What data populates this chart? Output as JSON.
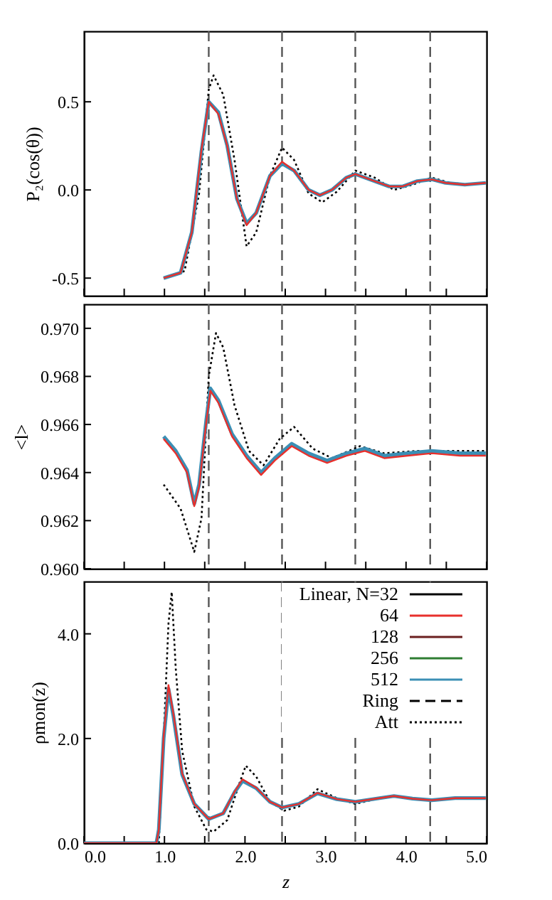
{
  "chart_data": [
    {
      "type": "line",
      "ylabel": "P₂(cos(θ))",
      "xlim": [
        0,
        5
      ],
      "ylim": [
        -0.6,
        0.9
      ],
      "xticks": [
        {
          "value": 0,
          "label": null
        },
        {
          "value": 0.5,
          "label": null
        },
        {
          "value": 1,
          "label": null
        },
        {
          "value": 1.5,
          "label": null
        },
        {
          "value": 2,
          "label": null
        },
        {
          "value": 2.5,
          "label": null
        },
        {
          "value": 3,
          "label": null
        },
        {
          "value": 3.5,
          "label": null
        },
        {
          "value": 4,
          "label": null
        },
        {
          "value": 4.5,
          "label": null
        },
        {
          "value": 5,
          "label": null
        }
      ],
      "yticks": [
        {
          "value": -0.5,
          "label": "-0.5"
        },
        {
          "value": 0,
          "label": "0.0"
        },
        {
          "value": 0.5,
          "label": "0.5"
        }
      ],
      "tick_labels": "y",
      "x": [
        0.99,
        1.2,
        1.34,
        1.46,
        1.55,
        1.67,
        1.78,
        1.9,
        2.02,
        2.14,
        2.31,
        2.46,
        2.61,
        2.79,
        2.93,
        3.08,
        3.26,
        3.37,
        3.55,
        3.79,
        3.96,
        4.14,
        4.32,
        4.49,
        4.73,
        4.99
      ],
      "ref_lines": [
        {
          "axis": "x",
          "value": 1.55,
          "color": "#555555",
          "line_style": "dashed"
        },
        {
          "axis": "x",
          "value": 2.46,
          "color": "#555555",
          "line_style": "dashed"
        },
        {
          "axis": "x",
          "value": 3.37,
          "color": "#555555",
          "line_style": "dashed"
        },
        {
          "axis": "x",
          "value": 4.3,
          "color": "#555555",
          "line_style": "dashed"
        }
      ],
      "series": [
        {
          "color": "#e8302c",
          "values": [
            -0.5,
            -0.47,
            -0.24,
            0.23,
            0.5,
            0.43,
            0.25,
            -0.05,
            -0.2,
            -0.13,
            0.08,
            0.16,
            0.11,
            0.0,
            -0.03,
            0.0,
            0.07,
            0.09,
            0.06,
            0.02,
            0.02,
            0.05,
            0.06,
            0.04,
            0.03,
            0.04
          ]
        },
        {
          "color": "#3b8fb5",
          "values": [
            -0.5,
            -0.47,
            -0.24,
            0.22,
            0.5,
            0.44,
            0.25,
            -0.05,
            -0.19,
            -0.13,
            0.08,
            0.15,
            0.11,
            0.0,
            -0.03,
            0.0,
            0.07,
            0.09,
            0.06,
            0.02,
            0.02,
            0.05,
            0.06,
            0.04,
            0.03,
            0.04
          ]
        },
        {
          "color": "#000000",
          "line_style": "dotted",
          "x": [
            0.99,
            1.25,
            1.43,
            1.55,
            1.61,
            1.73,
            1.87,
            2.02,
            2.14,
            2.31,
            2.46,
            2.61,
            2.79,
            2.96,
            3.14,
            3.37,
            3.61,
            3.85,
            4.08,
            4.32,
            4.55,
            4.79,
            4.99
          ],
          "values": [
            -0.5,
            -0.46,
            -0.02,
            0.57,
            0.65,
            0.54,
            0.17,
            -0.32,
            -0.24,
            0.08,
            0.24,
            0.17,
            -0.02,
            -0.07,
            -0.01,
            0.11,
            0.07,
            0.0,
            0.03,
            0.07,
            0.04,
            0.03,
            0.04
          ]
        }
      ]
    },
    {
      "type": "line",
      "ylabel": "<l>",
      "xlim": [
        0,
        5
      ],
      "ylim": [
        0.96,
        0.971
      ],
      "xticks": [
        {
          "value": 0,
          "label": null
        },
        {
          "value": 0.5,
          "label": null
        },
        {
          "value": 1,
          "label": null
        },
        {
          "value": 1.5,
          "label": null
        },
        {
          "value": 2,
          "label": null
        },
        {
          "value": 2.5,
          "label": null
        },
        {
          "value": 3,
          "label": null
        },
        {
          "value": 3.5,
          "label": null
        },
        {
          "value": 4,
          "label": null
        },
        {
          "value": 4.5,
          "label": null
        },
        {
          "value": 5,
          "label": null
        }
      ],
      "yticks": [
        {
          "value": 0.96,
          "label": "0.960"
        },
        {
          "value": 0.962,
          "label": "0.962"
        },
        {
          "value": 0.964,
          "label": "0.964"
        },
        {
          "value": 0.966,
          "label": "0.966"
        },
        {
          "value": 0.968,
          "label": "0.968"
        },
        {
          "value": 0.97,
          "label": "0.970"
        }
      ],
      "tick_labels": "y",
      "x": [
        0.99,
        1.14,
        1.28,
        1.37,
        1.43,
        1.52,
        1.57,
        1.67,
        1.84,
        2.02,
        2.2,
        2.37,
        2.58,
        2.79,
        3.02,
        3.26,
        3.49,
        3.73,
        4.02,
        4.32,
        4.67,
        4.99
      ],
      "ref_lines": [
        {
          "axis": "x",
          "value": 1.55,
          "color": "#555555",
          "line_style": "dashed"
        },
        {
          "axis": "x",
          "value": 2.46,
          "color": "#555555",
          "line_style": "dashed"
        },
        {
          "axis": "x",
          "value": 3.37,
          "color": "#555555",
          "line_style": "dashed"
        },
        {
          "axis": "x",
          "value": 4.3,
          "color": "#555555",
          "line_style": "dashed"
        }
      ],
      "series": [
        {
          "color": "#e8302c",
          "values": [
            0.9654,
            0.9648,
            0.964,
            0.9626,
            0.9634,
            0.9661,
            0.9674,
            0.9669,
            0.9655,
            0.9646,
            0.9639,
            0.9645,
            0.9651,
            0.9647,
            0.9644,
            0.9647,
            0.9649,
            0.9646,
            0.9647,
            0.9648,
            0.9647,
            0.9647
          ]
        },
        {
          "color": "#3b8fb5",
          "values": [
            0.9655,
            0.9649,
            0.9641,
            0.9627,
            0.9635,
            0.9662,
            0.9675,
            0.967,
            0.9656,
            0.9647,
            0.964,
            0.9646,
            0.9652,
            0.9648,
            0.9645,
            0.9648,
            0.965,
            0.9647,
            0.9648,
            0.9649,
            0.9648,
            0.9648
          ]
        },
        {
          "color": "#000000",
          "line_style": "dotted",
          "x": [
            0.99,
            1.2,
            1.37,
            1.46,
            1.55,
            1.64,
            1.73,
            1.87,
            2.05,
            2.23,
            2.43,
            2.61,
            2.84,
            3.08,
            3.43,
            3.73,
            4.14,
            4.55,
            4.99
          ],
          "values": [
            0.9635,
            0.9625,
            0.9607,
            0.9621,
            0.968,
            0.9698,
            0.9692,
            0.9668,
            0.9649,
            0.9643,
            0.9654,
            0.9659,
            0.965,
            0.9646,
            0.9651,
            0.9648,
            0.9649,
            0.9649,
            0.9649
          ]
        }
      ]
    },
    {
      "type": "line",
      "ylabel": "ρmon(z)",
      "xlabel": "z",
      "xlim": [
        0,
        5
      ],
      "ylim": [
        0,
        5
      ],
      "xticks": [
        {
          "value": 0,
          "label": "0.0"
        },
        {
          "value": 0.5,
          "label": null
        },
        {
          "value": 1,
          "label": "1.0"
        },
        {
          "value": 1.5,
          "label": null
        },
        {
          "value": 2,
          "label": "2.0"
        },
        {
          "value": 2.5,
          "label": null
        },
        {
          "value": 3,
          "label": "3.0"
        },
        {
          "value": 3.5,
          "label": null
        },
        {
          "value": 4,
          "label": "4.0"
        },
        {
          "value": 4.5,
          "label": null
        },
        {
          "value": 5,
          "label": "5.0"
        }
      ],
      "yticks": [
        {
          "value": 0,
          "label": "0.0"
        },
        {
          "value": 2,
          "label": "2.0"
        },
        {
          "value": 4,
          "label": "4.0"
        }
      ],
      "legend": "top right",
      "x": [
        0,
        0.9,
        0.93,
        0.99,
        1.05,
        1.11,
        1.22,
        1.37,
        1.55,
        1.73,
        1.87,
        1.97,
        2.14,
        2.31,
        2.46,
        2.67,
        2.9,
        3.14,
        3.37,
        3.67,
        3.85,
        4.08,
        4.32,
        4.61,
        4.99
      ],
      "ref_lines": [
        {
          "axis": "x",
          "value": 1.55,
          "color": "#555555",
          "line_style": "dashed"
        },
        {
          "axis": "x",
          "value": 2.46,
          "color": "#555555",
          "line_style": "dashed"
        },
        {
          "axis": "x",
          "value": 3.37,
          "color": "#555555",
          "line_style": "dashed"
        },
        {
          "axis": "x",
          "value": 4.3,
          "color": "#555555",
          "line_style": "dashed"
        }
      ],
      "series": [
        {
          "name": "Linear, N=32",
          "color": "#000000",
          "values": [
            null,
            null,
            null,
            null,
            null,
            null,
            null,
            null,
            null,
            null,
            null,
            null,
            null,
            null,
            null,
            null,
            null,
            null,
            null,
            null,
            null,
            null,
            null,
            null,
            null
          ]
        },
        {
          "name": "64",
          "color": "#e8302c",
          "values": [
            0,
            0,
            0.26,
            2.05,
            3.02,
            2.48,
            1.33,
            0.75,
            0.46,
            0.57,
            0.98,
            1.22,
            1.06,
            0.79,
            0.68,
            0.75,
            0.96,
            0.84,
            0.79,
            0.86,
            0.9,
            0.85,
            0.82,
            0.86,
            0.86
          ]
        },
        {
          "name": "128",
          "color": "#6b1f1f",
          "values": [
            null,
            null,
            null,
            null,
            null,
            null,
            null,
            null,
            null,
            null,
            null,
            null,
            null,
            null,
            null,
            null,
            null,
            null,
            null,
            null,
            null,
            null,
            null,
            null,
            null
          ]
        },
        {
          "name": "256",
          "color": "#2e7d32",
          "values": [
            null,
            null,
            null,
            null,
            null,
            null,
            null,
            null,
            null,
            null,
            null,
            null,
            null,
            null,
            null,
            null,
            null,
            null,
            null,
            null,
            null,
            null,
            null,
            null,
            null
          ]
        },
        {
          "name": "512",
          "color": "#3b8fb5",
          "values": [
            0,
            0,
            0.26,
            2.0,
            2.95,
            2.44,
            1.31,
            0.75,
            0.46,
            0.57,
            0.97,
            1.19,
            1.05,
            0.79,
            0.68,
            0.75,
            0.95,
            0.84,
            0.79,
            0.86,
            0.9,
            0.85,
            0.82,
            0.86,
            0.86
          ]
        },
        {
          "name": "Ring",
          "color": "#000000",
          "line_style": "dashed",
          "values": [
            null,
            null,
            null,
            null,
            null,
            null,
            null,
            null,
            null,
            null,
            null,
            null,
            null,
            null,
            null,
            null,
            null,
            null,
            null,
            null,
            null,
            null,
            null,
            null,
            null
          ]
        },
        {
          "name": "Att",
          "color": "#000000",
          "line_style": "dotted",
          "x": [
            0,
            0.93,
            0.99,
            1.05,
            1.09,
            1.14,
            1.22,
            1.37,
            1.52,
            1.61,
            1.78,
            1.93,
            2.01,
            2.14,
            2.31,
            2.49,
            2.67,
            2.9,
            3.14,
            3.37,
            3.67,
            3.85,
            4.08,
            4.32,
            4.61,
            4.99
          ],
          "values": [
            0,
            0,
            2.02,
            4.2,
            4.8,
            3.34,
            1.76,
            0.7,
            0.26,
            0.22,
            0.44,
            1.14,
            1.48,
            1.27,
            0.79,
            0.62,
            0.7,
            1.03,
            0.86,
            0.75,
            0.86,
            0.9,
            0.84,
            0.82,
            0.86,
            0.86
          ]
        }
      ]
    }
  ]
}
